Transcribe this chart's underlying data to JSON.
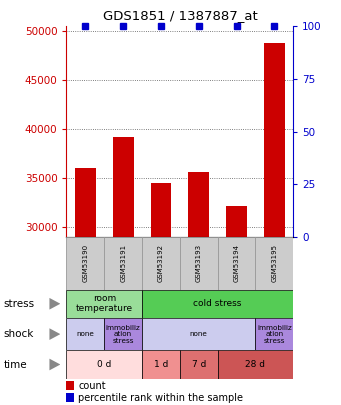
{
  "title": "GDS1851 / 1387887_at",
  "samples": [
    "GSM53190",
    "GSM53191",
    "GSM53192",
    "GSM53193",
    "GSM53194",
    "GSM53195"
  ],
  "bar_values": [
    36000,
    39200,
    34500,
    35600,
    32200,
    48800
  ],
  "bar_color": "#cc0000",
  "dot_color": "#0000cc",
  "ylim_left": [
    29000,
    50500
  ],
  "yticks_left": [
    30000,
    35000,
    40000,
    45000,
    50000
  ],
  "yticks_right": [
    0,
    25,
    50,
    75,
    100
  ],
  "ylim_right": [
    0,
    100
  ],
  "axis_color_left": "#cc0000",
  "axis_color_right": "#0000cc",
  "grid_color": "#555555",
  "sample_box_color": "#cccccc",
  "sample_box_edge": "#999999",
  "stress_segments": [
    {
      "label": "room\ntemperature",
      "start": 0,
      "end": 2,
      "color": "#99dd99"
    },
    {
      "label": "cold stress",
      "start": 2,
      "end": 6,
      "color": "#55cc55"
    }
  ],
  "shock_segments": [
    {
      "label": "none",
      "start": 0,
      "end": 1,
      "color": "#ccccee"
    },
    {
      "label": "immobiliz\nation\nstress",
      "start": 1,
      "end": 2,
      "color": "#aa88dd"
    },
    {
      "label": "none",
      "start": 2,
      "end": 5,
      "color": "#ccccee"
    },
    {
      "label": "immobiliz\nation\nstress",
      "start": 5,
      "end": 6,
      "color": "#aa88dd"
    }
  ],
  "time_segments": [
    {
      "label": "0 d",
      "start": 0,
      "end": 2,
      "color": "#ffdddd"
    },
    {
      "label": "1 d",
      "start": 2,
      "end": 3,
      "color": "#f09090"
    },
    {
      "label": "7 d",
      "start": 3,
      "end": 4,
      "color": "#dd7070"
    },
    {
      "label": "28 d",
      "start": 4,
      "end": 6,
      "color": "#cc5555"
    }
  ],
  "row_labels": [
    "stress",
    "shock",
    "time"
  ],
  "legend_items": [
    {
      "label": "count",
      "color": "#cc0000"
    },
    {
      "label": "percentile rank within the sample",
      "color": "#0000cc"
    }
  ]
}
